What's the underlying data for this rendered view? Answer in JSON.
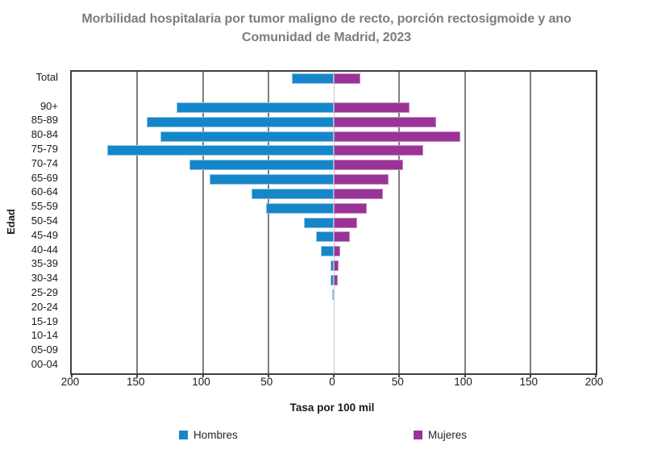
{
  "title": {
    "line1": "Morbilidad hospitalaria por tumor maligno de recto, porción rectosigmoide y ano",
    "line2": "Comunidad de Madrid, 2023"
  },
  "axes": {
    "x_label": "Tasa por 100 mil",
    "y_label": "Edad",
    "x_tick_labels": [
      "200",
      "150",
      "100",
      "50",
      "0",
      "50",
      "100",
      "150",
      "200"
    ],
    "x_tick_values": [
      -200,
      -150,
      -100,
      -50,
      0,
      50,
      100,
      150,
      200
    ]
  },
  "legend": {
    "hombres": "Hombres",
    "mujeres": "Mujeres"
  },
  "colors": {
    "hombres": "#1587c9",
    "mujeres": "#9a3398",
    "title": "#7d7d7d",
    "gridline": "#808080",
    "plot_border": "#404040",
    "zero_line": "#c9c9c9"
  },
  "chart_data": {
    "type": "bar",
    "variant": "population-pyramid",
    "title": "Morbilidad hospitalaria por tumor maligno de recto, porción rectosigmoide y ano — Comunidad de Madrid, 2023",
    "xlabel": "Tasa por 100 mil",
    "ylabel": "Edad",
    "xlim": [
      -200,
      200
    ],
    "tick_step": 50,
    "grid": "vertical",
    "legend_position": "bottom",
    "gap_after_first_category": true,
    "categories": [
      "Total",
      "90+",
      "85-89",
      "80-84",
      "75-79",
      "70-74",
      "65-69",
      "60-64",
      "55-59",
      "50-54",
      "45-49",
      "40-44",
      "35-39",
      "30-34",
      "25-29",
      "20-24",
      "15-19",
      "10-14",
      "05-09",
      "00-04"
    ],
    "series": [
      {
        "name": "Hombres",
        "side": "left",
        "color": "#1587c9",
        "values": [
          32,
          120,
          142.5,
          132.5,
          173,
          110,
          95,
          63,
          52,
          23,
          13.5,
          10,
          2.7,
          2.3,
          1,
          0,
          0,
          0,
          0,
          0
        ]
      },
      {
        "name": "Mujeres",
        "side": "right",
        "color": "#9a3398",
        "values": [
          20,
          58,
          78,
          96.5,
          68,
          53,
          42,
          37.5,
          25,
          18,
          12,
          5,
          3.4,
          2.9,
          0,
          0,
          0,
          0,
          0,
          0
        ]
      }
    ]
  }
}
